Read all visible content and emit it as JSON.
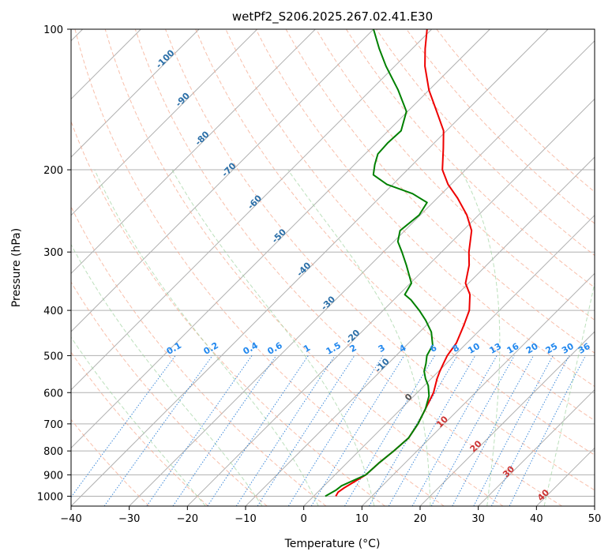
{
  "chart_data": {
    "type": "skew-t",
    "title": "wetPf2_S206.2025.267.02.41.E30",
    "xlabel": "Temperature (°C)",
    "ylabel": "Pressure (hPa)",
    "xlim": [
      -40,
      50
    ],
    "ylim": [
      1050,
      100
    ],
    "x_ticks": [
      "-40",
      "-30",
      "-20",
      "-10",
      "0",
      "10",
      "20",
      "30",
      "40",
      "50"
    ],
    "y_ticks": [
      "100",
      "200",
      "300",
      "400",
      "500",
      "600",
      "700",
      "800",
      "900",
      "1000"
    ],
    "grid": true,
    "series": [
      {
        "name": "temperature",
        "color": "#ee0000",
        "points": [
          [
            1000,
            3.8
          ],
          [
            980,
            3.5
          ],
          [
            960,
            3.8
          ],
          [
            900,
            5.3
          ],
          [
            850,
            5.5
          ],
          [
            800,
            6.0
          ],
          [
            750,
            6.3
          ],
          [
            700,
            5.5
          ],
          [
            650,
            4.2
          ],
          [
            600,
            2.8
          ],
          [
            560,
            1.0
          ],
          [
            540,
            0.2
          ],
          [
            520,
            -0.5
          ],
          [
            500,
            -1.2
          ],
          [
            470,
            -1.8
          ],
          [
            430,
            -3.6
          ],
          [
            400,
            -5.2
          ],
          [
            370,
            -7.8
          ],
          [
            350,
            -10.5
          ],
          [
            320,
            -13.0
          ],
          [
            300,
            -15.3
          ],
          [
            270,
            -18.5
          ],
          [
            250,
            -22.0
          ],
          [
            230,
            -26.5
          ],
          [
            215,
            -30.5
          ],
          [
            200,
            -34.0
          ],
          [
            180,
            -37.5
          ],
          [
            165,
            -40.5
          ],
          [
            150,
            -45.0
          ],
          [
            135,
            -50.0
          ],
          [
            120,
            -54.8
          ],
          [
            110,
            -57.8
          ],
          [
            100,
            -60.8
          ]
        ]
      },
      {
        "name": "dewpoint",
        "color": "#008000",
        "points": [
          [
            1000,
            2.0
          ],
          [
            970,
            2.8
          ],
          [
            950,
            3.0
          ],
          [
            900,
            5.3
          ],
          [
            850,
            5.5
          ],
          [
            800,
            6.0
          ],
          [
            750,
            6.3
          ],
          [
            700,
            5.5
          ],
          [
            650,
            4.2
          ],
          [
            610,
            2.6
          ],
          [
            580,
            0.7
          ],
          [
            560,
            -1.0
          ],
          [
            540,
            -2.5
          ],
          [
            520,
            -3.5
          ],
          [
            500,
            -4.7
          ],
          [
            475,
            -5.5
          ],
          [
            445,
            -8.0
          ],
          [
            420,
            -11.0
          ],
          [
            400,
            -13.8
          ],
          [
            380,
            -17.0
          ],
          [
            370,
            -19.0
          ],
          [
            350,
            -19.8
          ],
          [
            320,
            -23.8
          ],
          [
            300,
            -26.8
          ],
          [
            285,
            -29.3
          ],
          [
            270,
            -30.8
          ],
          [
            250,
            -30.2
          ],
          [
            235,
            -31.0
          ],
          [
            225,
            -35.0
          ],
          [
            215,
            -41.0
          ],
          [
            205,
            -45.0
          ],
          [
            195,
            -46.5
          ],
          [
            185,
            -47.8
          ],
          [
            175,
            -48.0
          ],
          [
            165,
            -47.8
          ],
          [
            150,
            -50.2
          ],
          [
            135,
            -55.3
          ],
          [
            120,
            -61.5
          ],
          [
            110,
            -65.7
          ],
          [
            100,
            -70.0
          ]
        ]
      }
    ],
    "dry_adiabats_C": [
      -30,
      -20,
      -10,
      0,
      10,
      20,
      30,
      40,
      50,
      60,
      70,
      80,
      90,
      100,
      110,
      120,
      130,
      140
    ],
    "moist_adiabats_C": [
      -20,
      -10,
      0,
      10,
      20,
      30,
      40
    ],
    "mixing_ratio_lines_gkg": [
      0.1,
      0.2,
      0.4,
      0.6,
      1,
      1.5,
      2,
      3,
      4,
      6,
      8,
      10,
      13,
      16,
      20,
      25,
      30,
      36
    ],
    "mixing_ratio_labels": [
      "0.1",
      "0.2",
      "0.4",
      "0.6",
      "1",
      "1.5",
      "2",
      "3",
      "4",
      "6",
      "8",
      "10",
      "13",
      "16",
      "20",
      "25",
      "30",
      "36"
    ],
    "isotherm_labels": [
      {
        "t": -100,
        "p": 117,
        "text": "-100"
      },
      {
        "t": -90,
        "p": 143,
        "text": "-90"
      },
      {
        "t": -80,
        "p": 173,
        "text": "-80"
      },
      {
        "t": -70,
        "p": 202,
        "text": "-70"
      },
      {
        "t": -60,
        "p": 237,
        "text": "-60"
      },
      {
        "t": -50,
        "p": 280,
        "text": "-50"
      },
      {
        "t": -40,
        "p": 330,
        "text": "-40"
      },
      {
        "t": -30,
        "p": 390,
        "text": "-30"
      },
      {
        "t": -20,
        "p": 460,
        "text": "-20"
      },
      {
        "t": -10,
        "p": 530,
        "text": "-10"
      },
      {
        "t": 0,
        "p": 620,
        "text": "0"
      },
      {
        "t": 10,
        "p": 700,
        "text": "10"
      },
      {
        "t": 20,
        "p": 790,
        "text": "20"
      },
      {
        "t": 30,
        "p": 895,
        "text": "30"
      },
      {
        "t": 40,
        "p": 1005,
        "text": "40"
      }
    ]
  }
}
